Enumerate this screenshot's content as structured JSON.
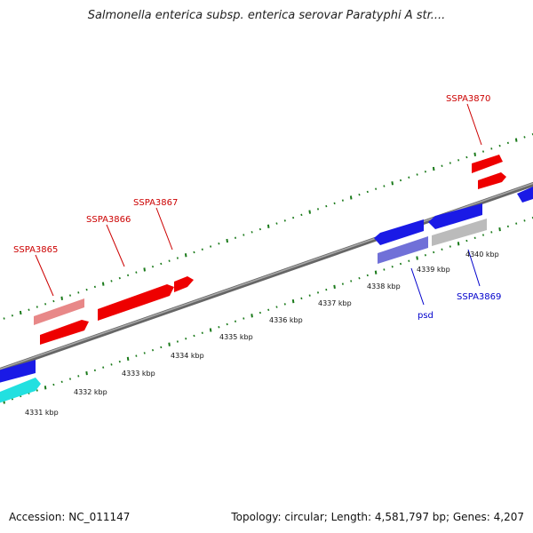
{
  "title": "Salmonella enterica subsp. enterica serovar Paratyphi A str....",
  "footer": {
    "accession": "Accession: NC_011147",
    "summary": "Topology: circular; Length: 4,581,797 bp; Genes: 4,207"
  },
  "colors": {
    "backbone": "#777777",
    "tick": "#1a7a1a",
    "forward_gene": "#ee0000",
    "forward_gene_light": "#e88888",
    "reverse_gene": "#1a1ae6",
    "reverse_gene_light": "#7070d8",
    "cyan_gene": "#22e0e0",
    "grey_gene": "#bbbbbb",
    "forward_label": "#cc0000",
    "reverse_label": "#0000cc"
  },
  "kbp_labels": [
    "4331 kbp",
    "4332 kbp",
    "4333 kbp",
    "4334 kbp",
    "4335 kbp",
    "4336 kbp",
    "4337 kbp",
    "4338 kbp",
    "4339 kbp",
    "4340 kbp"
  ],
  "gene_labels": [
    {
      "text": "SSPA3865",
      "strand": "forward"
    },
    {
      "text": "SSPA3866",
      "strand": "forward"
    },
    {
      "text": "SSPA3867",
      "strand": "forward"
    },
    {
      "text": "SSPA3870",
      "strand": "forward"
    },
    {
      "text": "psd",
      "strand": "reverse"
    },
    {
      "text": "SSPA3869",
      "strand": "reverse"
    }
  ]
}
